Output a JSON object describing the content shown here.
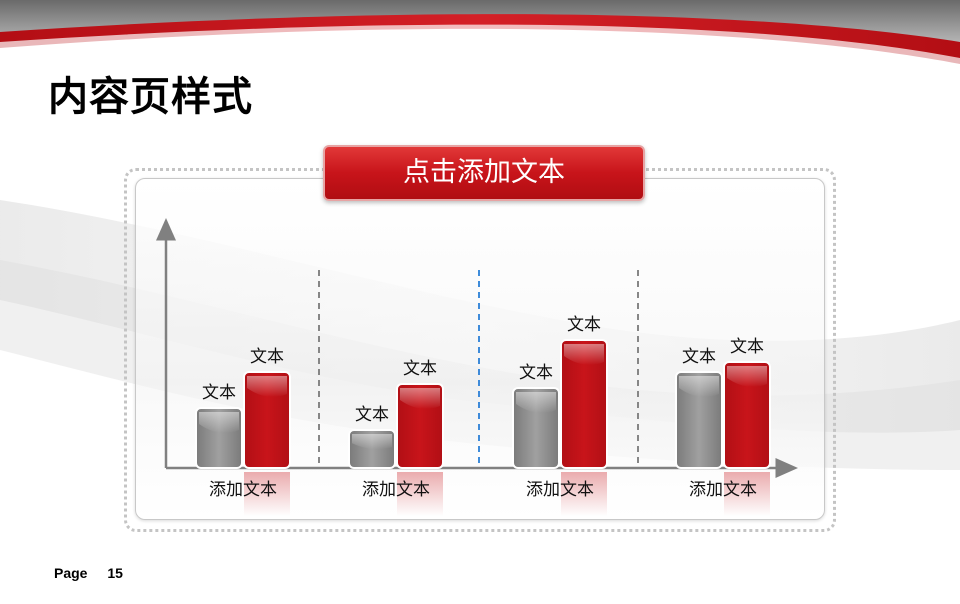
{
  "slide": {
    "title": "内容页样式",
    "header_text": "点击添加文本",
    "footer_label": "Page",
    "page_number": "15"
  },
  "colors": {
    "accent_red": "#c8141a",
    "bar_gray": "#8c8c8c",
    "bar_red": "#c8141a",
    "divider_gray": "#7a7a7a",
    "divider_blue": "#2a7fd6"
  },
  "chart_data": {
    "type": "bar",
    "categories": [
      "添加文本",
      "添加文本",
      "添加文本",
      "添加文本"
    ],
    "series": [
      {
        "values": [
          30,
          19,
          40,
          48
        ],
        "labels": [
          "文本",
          "文本",
          "文本",
          "文本"
        ]
      },
      {
        "values": [
          48,
          42,
          64,
          53
        ],
        "labels": [
          "文本",
          "文本",
          "文本",
          "文本"
        ]
      }
    ],
    "ylim": [
      0,
      120
    ],
    "grid": false,
    "dividers": [
      "dashed-gray",
      "dashed-blue",
      "dashed-gray"
    ]
  }
}
